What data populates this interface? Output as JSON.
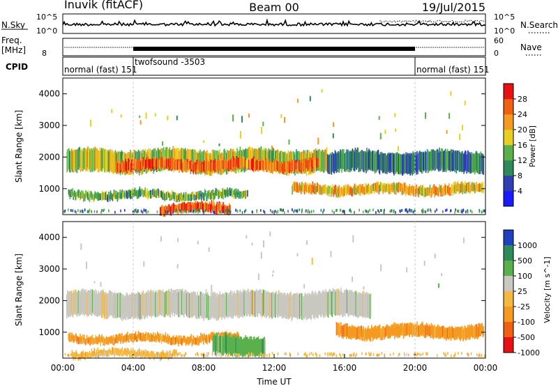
{
  "header": {
    "station": "Inuvik (fitACF)",
    "beam": "Beam 00",
    "date": "19/Jul/2015"
  },
  "strips": {
    "nsky_label": "N.Sky",
    "nsky_ticks": [
      "10^5",
      "10^0"
    ],
    "nsearch_label": "N.Search",
    "nsearch_ticks": [
      "10^5",
      "10^0"
    ],
    "freq_label": "Freq.",
    "freq_unit": "[MHz]",
    "freq_ticks": [
      "8"
    ],
    "nave_label": "Nave",
    "nave_ticks": [
      "60",
      "0"
    ],
    "cpid_label": "CPID",
    "cpid_segments": [
      {
        "text": "normal (fast) 151",
        "start_h": 0,
        "end_h": 4
      },
      {
        "text": "twofsound -3503",
        "start_h": 4,
        "end_h": 20
      },
      {
        "text": "normal (fast) 151",
        "start_h": 20,
        "end_h": 24
      }
    ]
  },
  "chart_data": [
    {
      "type": "heatmap",
      "name": "power",
      "xlabel": "",
      "ylabel": "Slant Range [km]",
      "xlim": [
        0,
        24
      ],
      "ylim": [
        180,
        4500
      ],
      "yticks": [
        1000,
        2000,
        3000,
        4000
      ],
      "colorbar": {
        "title": "Power [dB]",
        "ticks": [
          "4",
          "8",
          "12",
          "16",
          "20",
          "24",
          "28"
        ],
        "colors": [
          "#1a1aff",
          "#2f3fb0",
          "#2f8a5a",
          "#5ab04a",
          "#e8d020",
          "#f59a20",
          "#f06010",
          "#e81010"
        ]
      },
      "echo_bands": [
        {
          "start_h": 0.2,
          "end_h": 15.0,
          "range_low": 1500,
          "range_high": 2250,
          "power_db": 16
        },
        {
          "start_h": 3.0,
          "end_h": 14.5,
          "range_low": 1550,
          "range_high": 1950,
          "power_db": 25
        },
        {
          "start_h": 0.3,
          "end_h": 10.5,
          "range_low": 650,
          "range_high": 950,
          "power_db": 12
        },
        {
          "start_h": 13.0,
          "end_h": 23.9,
          "range_low": 800,
          "range_high": 1150,
          "power_db": 20
        },
        {
          "start_h": 5.5,
          "end_h": 9.5,
          "range_low": 200,
          "range_high": 550,
          "power_db": 26
        },
        {
          "start_h": 15.0,
          "end_h": 23.9,
          "range_low": 1500,
          "range_high": 2200,
          "power_db": 8
        }
      ]
    },
    {
      "type": "heatmap",
      "name": "velocity",
      "xlabel": "Time UT",
      "ylabel": "Slant Range [km]",
      "xlim": [
        0,
        24
      ],
      "ylim": [
        180,
        4500
      ],
      "xticks": [
        "00:00",
        "04:00",
        "08:00",
        "12:00",
        "16:00",
        "20:00",
        "00:00"
      ],
      "yticks": [
        1000,
        2000,
        3000,
        4000
      ],
      "colorbar": {
        "title": "Velocity [m s^-1]",
        "ticks": [
          "1000",
          "500",
          "100",
          "25",
          "-25",
          "-100",
          "-500",
          "-1000"
        ],
        "colors": [
          "#2040c0",
          "#2f8a5a",
          "#5ab04a",
          "#c8c8c0",
          "#f5b840",
          "#f59a20",
          "#f06010",
          "#e81010"
        ]
      },
      "echo_bands": [
        {
          "start_h": 0.2,
          "end_h": 17.5,
          "range_low": 1450,
          "range_high": 2300,
          "velocity": 0
        },
        {
          "start_h": 15.5,
          "end_h": 23.9,
          "range_low": 800,
          "range_high": 1250,
          "velocity": -300
        },
        {
          "start_h": 0.3,
          "end_h": 10.0,
          "range_low": 650,
          "range_high": 950,
          "velocity": -200
        },
        {
          "start_h": 8.5,
          "end_h": 11.5,
          "range_low": 250,
          "range_high": 900,
          "velocity": 120
        },
        {
          "start_h": 0.5,
          "end_h": 6.5,
          "range_low": 200,
          "range_high": 450,
          "velocity": -60
        }
      ]
    }
  ]
}
